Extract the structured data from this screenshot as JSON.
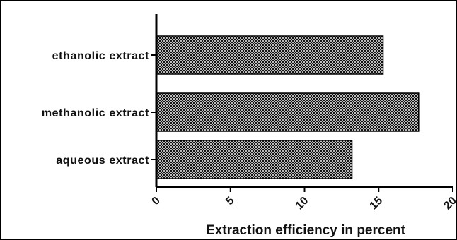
{
  "chart_data": {
    "type": "bar",
    "orientation": "horizontal",
    "categories": [
      "ethanolic extract",
      "methanolic extract",
      "aqueous extract"
    ],
    "values": [
      15.3,
      17.7,
      13.2
    ],
    "xlabel": "Extraction efficiency in percent",
    "ylabel": "",
    "xlim": [
      0,
      20
    ],
    "xticks": [
      "0",
      "5",
      "10",
      "15",
      "20"
    ],
    "tick_label_rotation": -45,
    "grid": false,
    "legend": "none",
    "bar_fill": "crosshatch",
    "bar_color": "#000000"
  }
}
